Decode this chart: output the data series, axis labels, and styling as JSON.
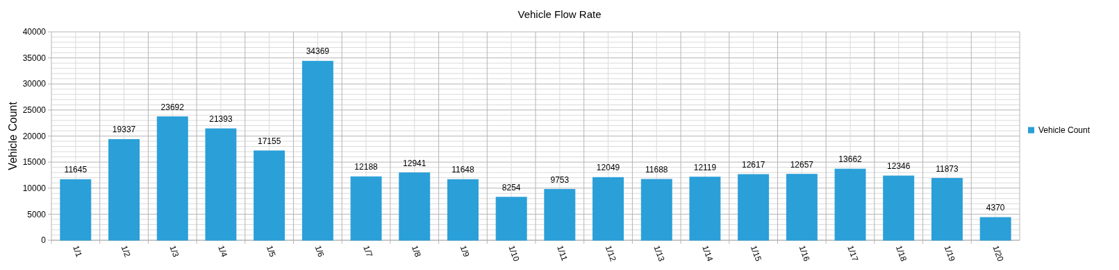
{
  "chart_data": {
    "type": "bar",
    "title": "Vehicle Flow Rate",
    "ylabel": "Vehicle Count",
    "categories": [
      "1/1",
      "1/2",
      "1/3",
      "1/4",
      "1/5",
      "1/6",
      "1/7",
      "1/8",
      "1/9",
      "1/10",
      "1/11",
      "1/12",
      "1/13",
      "1/14",
      "1/15",
      "1/16",
      "1/17",
      "1/18",
      "1/19",
      "1/20"
    ],
    "series": [
      {
        "name": "Vehicle Count",
        "color": "#2a9fd8",
        "values": [
          11645,
          19337,
          23692,
          21393,
          17155,
          34369,
          12188,
          12941,
          11648,
          8254,
          9753,
          12049,
          11688,
          12119,
          12617,
          12657,
          13662,
          12346,
          11873,
          4370
        ]
      }
    ],
    "ylim": [
      0,
      40000
    ],
    "yticks": [
      0,
      {
        "value": 1000,
        "label": null
      },
      {
        "value": 2000,
        "label": null
      },
      {
        "value": 3000,
        "label": null
      },
      {
        "value": 4000,
        "label": null
      },
      5000,
      {
        "value": 6000,
        "label": null
      },
      {
        "value": 7000,
        "label": null
      },
      {
        "value": 8000,
        "label": null
      },
      {
        "value": 9000,
        "label": null
      },
      10000,
      {
        "value": 11000,
        "label": null
      },
      {
        "value": 12000,
        "label": null
      },
      {
        "value": 13000,
        "label": null
      },
      {
        "value": 14000,
        "label": null
      },
      15000,
      {
        "value": 16000,
        "label": null
      },
      {
        "value": 17000,
        "label": null
      },
      {
        "value": 18000,
        "label": null
      },
      {
        "value": 19000,
        "label": null
      },
      20000,
      {
        "value": 21000,
        "label": null
      },
      {
        "value": 22000,
        "label": null
      },
      {
        "value": 23000,
        "label": null
      },
      {
        "value": 24000,
        "label": null
      },
      25000,
      {
        "value": 26000,
        "label": null
      },
      {
        "value": 27000,
        "label": null
      },
      {
        "value": 28000,
        "label": null
      },
      {
        "value": 29000,
        "label": null
      },
      30000,
      {
        "value": 31000,
        "label": null
      },
      {
        "value": 32000,
        "label": null
      },
      {
        "value": 33000,
        "label": null
      },
      {
        "value": 34000,
        "label": null
      },
      35000,
      {
        "value": 36000,
        "label": null
      },
      {
        "value": 37000,
        "label": null
      },
      {
        "value": 38000,
        "label": null
      },
      {
        "value": 39000,
        "label": null
      },
      40000
    ],
    "grid": true,
    "legend": "right",
    "data_labels": true
  }
}
